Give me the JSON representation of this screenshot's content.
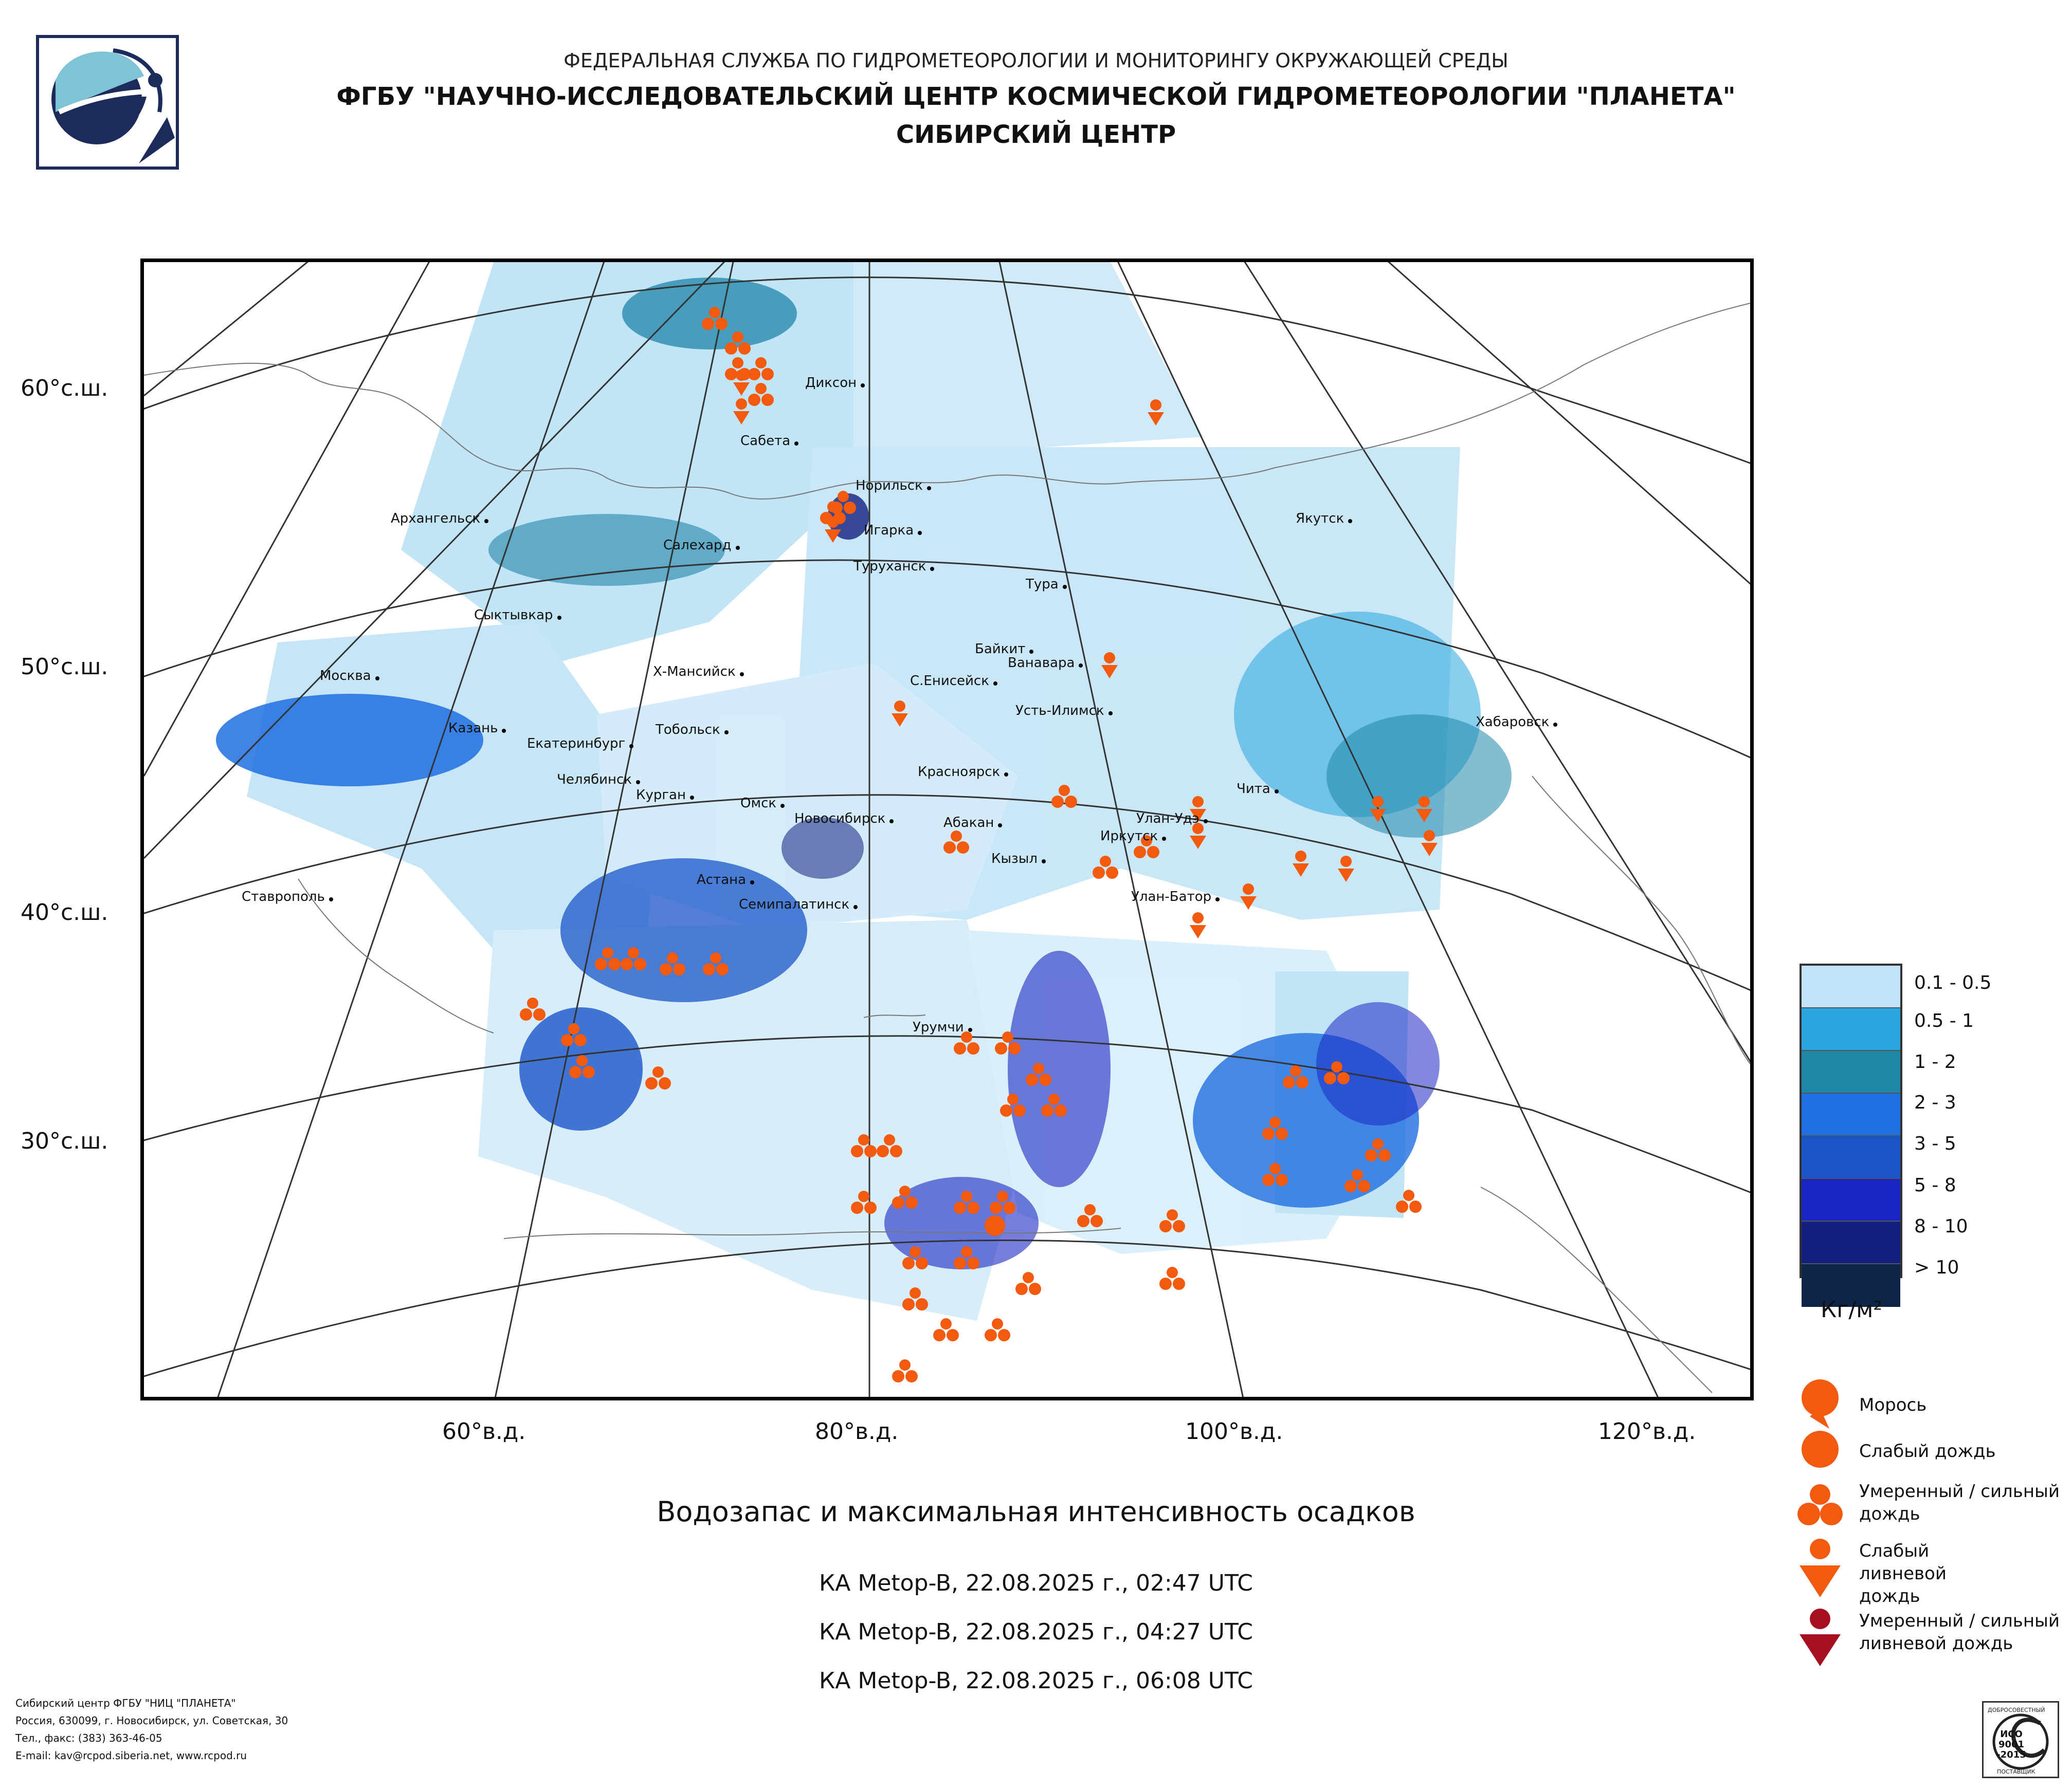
{
  "header": {
    "line1": "ФЕДЕРАЛЬНАЯ СЛУЖБА ПО ГИДРОМЕТЕОРОЛОГИИ И МОНИТОРИНГУ ОКРУЖАЮЩЕЙ СРЕДЫ",
    "line2": "ФГБУ \"НАУЧНО-ИССЛЕДОВАТЕЛЬСКИЙ ЦЕНТР КОСМИЧЕСКОЙ ГИДРОМЕТЕОРОЛОГИИ \"ПЛАНЕТА\"",
    "line3": "СИБИРСКИЙ ЦЕНТР"
  },
  "map": {
    "lat_labels": [
      "60°с.ш.",
      "50°с.ш.",
      "40°с.ш.",
      "30°с.ш."
    ],
    "lon_labels": [
      "60°в.д.",
      "80°в.д.",
      "100°в.д.",
      "120°в.д."
    ],
    "cities": [
      "Диксон",
      "Сабета",
      "Норильск",
      "Игарка",
      "Салехард",
      "Туруханск",
      "Архангельск",
      "Якутск",
      "Тура",
      "Сыктывкар",
      "Байкит",
      "Ванавара",
      "Москва",
      "Х-Мансийск",
      "С.Енисейск",
      "Усть-Илимск",
      "Хабаровск",
      "Казань",
      "Екатеринбург",
      "Тобольск",
      "Красноярск",
      "Челябинск",
      "Курган",
      "Чита",
      "Омск",
      "Новосибирск",
      "Улан-Удэ",
      "Абакан",
      "Иркутск",
      "Кызыл",
      "Астана",
      "Ставрополь",
      "Семипалатинск",
      "Улан-Батор",
      "Урумчи"
    ]
  },
  "legend": {
    "classes": [
      {
        "label": "0.1 - 0.5",
        "color": "#bfe3f7"
      },
      {
        "label": "0.5 - 1",
        "color": "#29a6df"
      },
      {
        "label": "1 - 2",
        "color": "#1f86a8"
      },
      {
        "label": "2 - 3",
        "color": "#1f6fe0"
      },
      {
        "label": "3 - 5",
        "color": "#1a55c8"
      },
      {
        "label": "5 - 8",
        "color": "#1a26c2"
      },
      {
        "label": "8 - 10",
        "color": "#13207e"
      },
      {
        "label": "> 10",
        "color": "#0d2549"
      }
    ],
    "unit": "Кг/м²"
  },
  "precip_legend": [
    {
      "label": "Морось",
      "symbol": "drizzle-icon"
    },
    {
      "label": "Слабый дождь",
      "symbol": "light-rain-icon"
    },
    {
      "label": "Умеренный / сильный дождь",
      "symbol": "moderate-rain-icon"
    },
    {
      "label": "Слабый ливневой дождь",
      "symbol": "light-shower-icon"
    },
    {
      "label": "Умеренный / сильный ливневой дождь",
      "symbol": "heavy-shower-icon"
    }
  ],
  "symbol_colors": {
    "rain": "#f25a0f",
    "shower_heavy": "#a60f1f"
  },
  "caption": {
    "title": "Водозапас и максимальная интенсивность осадков",
    "passes": [
      "КА Metop-B, 22.08.2025 г., 02:47 UTC",
      "КА Metop-B, 22.08.2025 г., 04:27 UTC",
      "КА Metop-B, 22.08.2025 г., 06:08 UTC"
    ]
  },
  "footer": {
    "lines": [
      "Сибирский центр ФГБУ \"НИЦ \"ПЛАНЕТА\"",
      "Россия, 630099, г. Новосибирск, ул. Советская, 30",
      "Тел., факс: (383) 363-46-05",
      "E-mail: kav@rcpod.siberia.net, www.rcpod.ru"
    ],
    "iso_badge": "ИСО 9001 -2015"
  }
}
